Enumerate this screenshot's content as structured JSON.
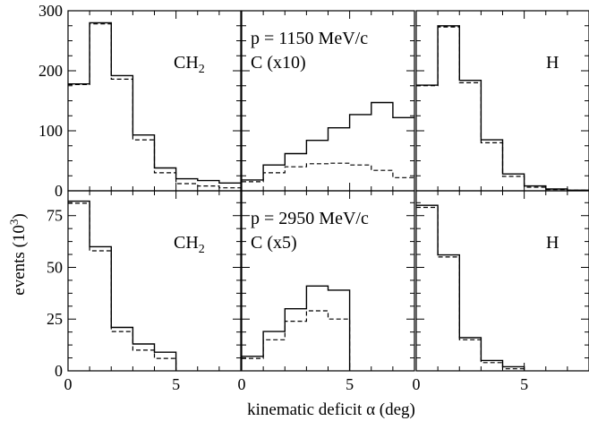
{
  "figure": {
    "ylabel_main": "events (10",
    "ylabel_exp": "3",
    "ylabel_end": ")",
    "xlabel": "kinematic deficit α (deg)",
    "solid_color": "#000000",
    "dashed_color": "#000000"
  },
  "chart_data": [
    {
      "type": "step-histogram",
      "row": 0,
      "col": 0,
      "label_main": "CH",
      "label_sub": "2",
      "label_line2": "",
      "xlim": [
        0,
        8
      ],
      "ylim": [
        0,
        300
      ],
      "edges": [
        0,
        1,
        2,
        3,
        4,
        5,
        6,
        7,
        8
      ],
      "yticks": [
        0,
        100,
        200,
        300
      ],
      "yticklabels": [
        "0",
        "100",
        "200",
        "300"
      ],
      "xticks": [],
      "xticklabels": [],
      "series": [
        {
          "style": "solid",
          "values": [
            178,
            280,
            192,
            93,
            38,
            20,
            17,
            13
          ]
        },
        {
          "style": "dashed",
          "values": [
            177,
            278,
            186,
            85,
            30,
            12,
            8,
            5
          ]
        }
      ]
    },
    {
      "type": "step-histogram",
      "row": 0,
      "col": 1,
      "label_main": "p = 1150 MeV/c",
      "label_sub": "",
      "label_line2": "C (x10)",
      "xlim": [
        0,
        8
      ],
      "ylim": [
        0,
        300
      ],
      "edges": [
        0,
        1,
        2,
        3,
        4,
        5,
        6,
        7,
        8
      ],
      "yticks": [],
      "yticklabels": [],
      "xticks": [],
      "xticklabels": [],
      "series": [
        {
          "style": "solid",
          "values": [
            18,
            43,
            62,
            84,
            105,
            127,
            147,
            122
          ]
        },
        {
          "style": "dashed",
          "values": [
            15,
            30,
            40,
            45,
            46,
            43,
            34,
            22
          ]
        }
      ]
    },
    {
      "type": "step-histogram",
      "row": 0,
      "col": 2,
      "label_main": "H",
      "label_sub": "",
      "label_line2": "",
      "xlim": [
        0,
        8
      ],
      "ylim": [
        0,
        300
      ],
      "edges": [
        0,
        1,
        2,
        3,
        4,
        5,
        6,
        7,
        8
      ],
      "yticks": [],
      "yticklabels": [],
      "xticks": [],
      "xticklabels": [],
      "series": [
        {
          "style": "solid",
          "values": [
            176,
            275,
            184,
            85,
            28,
            8,
            3,
            1
          ]
        },
        {
          "style": "dashed",
          "values": [
            175,
            273,
            180,
            80,
            24,
            6,
            2,
            1
          ]
        }
      ]
    },
    {
      "type": "step-histogram",
      "row": 1,
      "col": 0,
      "label_main": "CH",
      "label_sub": "2",
      "label_line2": "",
      "xlim": [
        0,
        8
      ],
      "ylim": [
        0,
        87
      ],
      "edges": [
        0,
        1,
        2,
        3,
        4,
        5
      ],
      "yticks": [
        0,
        25,
        50,
        75
      ],
      "yticklabels": [
        "0",
        "25",
        "50",
        "75"
      ],
      "xticks": [
        0,
        5
      ],
      "xticklabels": [
        "0",
        "5"
      ],
      "series": [
        {
          "style": "solid",
          "values": [
            82,
            60,
            21,
            13,
            9
          ]
        },
        {
          "style": "dashed",
          "values": [
            81,
            58,
            19,
            10,
            6
          ]
        }
      ]
    },
    {
      "type": "step-histogram",
      "row": 1,
      "col": 1,
      "label_main": "p = 2950 MeV/c",
      "label_sub": "",
      "label_line2": "C (x5)",
      "xlim": [
        0,
        8
      ],
      "ylim": [
        0,
        87
      ],
      "edges": [
        0,
        1,
        2,
        3,
        4,
        5
      ],
      "yticks": [],
      "yticklabels": [],
      "xticks": [
        0,
        5
      ],
      "xticklabels": [
        "0",
        "5"
      ],
      "series": [
        {
          "style": "solid",
          "values": [
            7,
            19,
            30,
            41,
            39
          ]
        },
        {
          "style": "dashed",
          "values": [
            6,
            15,
            24,
            29,
            25
          ]
        }
      ]
    },
    {
      "type": "step-histogram",
      "row": 1,
      "col": 2,
      "label_main": "H",
      "label_sub": "",
      "label_line2": "",
      "xlim": [
        0,
        8
      ],
      "ylim": [
        0,
        87
      ],
      "edges": [
        0,
        1,
        2,
        3,
        4,
        5
      ],
      "yticks": [],
      "yticklabels": [],
      "xticks": [
        0,
        5
      ],
      "xticklabels": [
        "0",
        "5"
      ],
      "series": [
        {
          "style": "solid",
          "values": [
            80,
            56,
            16,
            5,
            2
          ]
        },
        {
          "style": "dashed",
          "values": [
            79,
            55,
            15,
            4,
            1
          ]
        }
      ]
    }
  ]
}
